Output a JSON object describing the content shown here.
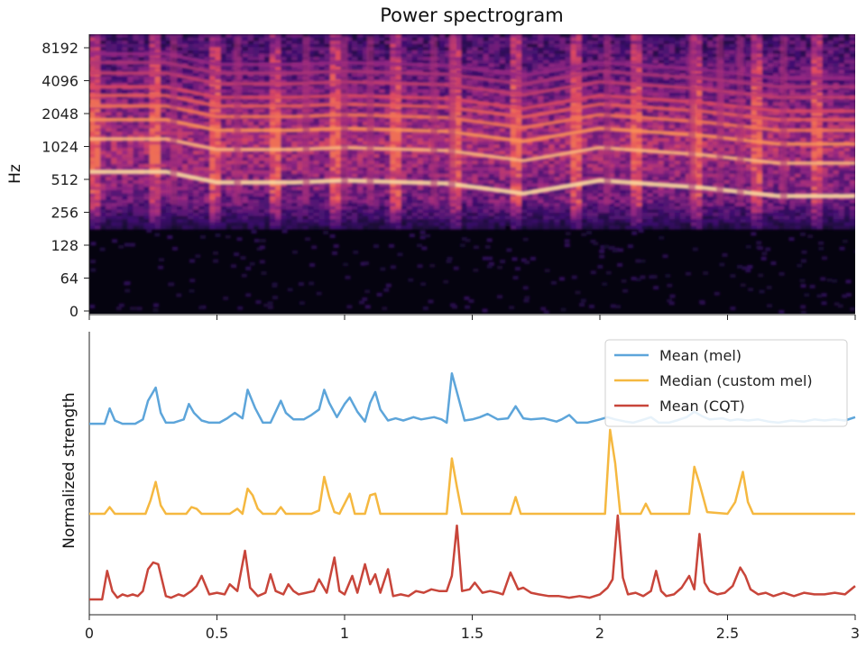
{
  "chart_data": [
    {
      "type": "heatmap",
      "title": "Power spectrogram",
      "xlabel": "",
      "ylabel": "Hz",
      "y_scale": "log2",
      "y_ticks": [
        "0",
        "64",
        "128",
        "256",
        "512",
        "1024",
        "2048",
        "4096",
        "8192"
      ],
      "xlim": [
        0,
        3
      ],
      "colormap": "magma",
      "prominent_bands_hz": [
        {
          "t": [
            0.0,
            0.3,
            0.5,
            0.8,
            1.0,
            1.4,
            1.7,
            2.0,
            2.4,
            2.7,
            3.0
          ],
          "f": [
            600,
            600,
            480,
            480,
            500,
            470,
            380,
            500,
            430,
            360,
            360
          ]
        }
      ]
    },
    {
      "type": "line",
      "title": "",
      "xlabel": "",
      "ylabel": "Normalized strength",
      "xlim": [
        0,
        3
      ],
      "x_ticks": [
        "0",
        "0.5",
        "1",
        "1.5",
        "2",
        "2.5",
        "3"
      ],
      "legend": "top-right",
      "series": [
        {
          "name": "Mean (mel)",
          "color": "#5da5da",
          "offset": 2,
          "points": [
            [
              0,
              0.08
            ],
            [
              0.06,
              0.08
            ],
            [
              0.08,
              0.36
            ],
            [
              0.1,
              0.14
            ],
            [
              0.13,
              0.08
            ],
            [
              0.18,
              0.08
            ],
            [
              0.21,
              0.16
            ],
            [
              0.23,
              0.5
            ],
            [
              0.26,
              0.74
            ],
            [
              0.28,
              0.28
            ],
            [
              0.3,
              0.1
            ],
            [
              0.33,
              0.1
            ],
            [
              0.37,
              0.16
            ],
            [
              0.39,
              0.44
            ],
            [
              0.41,
              0.28
            ],
            [
              0.44,
              0.14
            ],
            [
              0.47,
              0.1
            ],
            [
              0.51,
              0.1
            ],
            [
              0.54,
              0.18
            ],
            [
              0.57,
              0.28
            ],
            [
              0.6,
              0.18
            ],
            [
              0.62,
              0.7
            ],
            [
              0.65,
              0.36
            ],
            [
              0.68,
              0.1
            ],
            [
              0.71,
              0.1
            ],
            [
              0.73,
              0.3
            ],
            [
              0.75,
              0.5
            ],
            [
              0.77,
              0.28
            ],
            [
              0.8,
              0.16
            ],
            [
              0.84,
              0.16
            ],
            [
              0.87,
              0.24
            ],
            [
              0.9,
              0.34
            ],
            [
              0.92,
              0.7
            ],
            [
              0.94,
              0.46
            ],
            [
              0.97,
              0.2
            ],
            [
              1.0,
              0.44
            ],
            [
              1.02,
              0.56
            ],
            [
              1.05,
              0.3
            ],
            [
              1.08,
              0.12
            ],
            [
              1.1,
              0.46
            ],
            [
              1.12,
              0.66
            ],
            [
              1.14,
              0.34
            ],
            [
              1.17,
              0.14
            ],
            [
              1.2,
              0.18
            ],
            [
              1.23,
              0.14
            ],
            [
              1.27,
              0.2
            ],
            [
              1.3,
              0.16
            ],
            [
              1.35,
              0.2
            ],
            [
              1.38,
              0.16
            ],
            [
              1.4,
              0.1
            ],
            [
              1.42,
              1.0
            ],
            [
              1.45,
              0.48
            ],
            [
              1.47,
              0.14
            ],
            [
              1.5,
              0.16
            ],
            [
              1.53,
              0.2
            ],
            [
              1.56,
              0.26
            ],
            [
              1.6,
              0.16
            ],
            [
              1.64,
              0.18
            ],
            [
              1.67,
              0.4
            ],
            [
              1.7,
              0.18
            ],
            [
              1.73,
              0.16
            ],
            [
              1.78,
              0.18
            ],
            [
              1.83,
              0.12
            ],
            [
              1.85,
              0.16
            ],
            [
              1.88,
              0.24
            ],
            [
              1.91,
              0.1
            ],
            [
              1.95,
              0.1
            ],
            [
              2.0,
              0.16
            ],
            [
              2.03,
              0.2
            ],
            [
              2.06,
              0.16
            ],
            [
              2.1,
              0.12
            ],
            [
              2.13,
              0.1
            ],
            [
              2.16,
              0.14
            ],
            [
              2.2,
              0.2
            ],
            [
              2.23,
              0.1
            ],
            [
              2.27,
              0.1
            ],
            [
              2.3,
              0.14
            ],
            [
              2.34,
              0.2
            ],
            [
              2.37,
              0.3
            ],
            [
              2.4,
              0.22
            ],
            [
              2.43,
              0.16
            ],
            [
              2.48,
              0.18
            ],
            [
              2.51,
              0.14
            ],
            [
              2.54,
              0.16
            ],
            [
              2.58,
              0.14
            ],
            [
              2.62,
              0.16
            ],
            [
              2.66,
              0.12
            ],
            [
              2.7,
              0.1
            ],
            [
              2.75,
              0.14
            ],
            [
              2.8,
              0.12
            ],
            [
              2.84,
              0.16
            ],
            [
              2.88,
              0.14
            ],
            [
              2.92,
              0.16
            ],
            [
              2.96,
              0.14
            ],
            [
              3.0,
              0.2
            ]
          ]
        },
        {
          "name": "Median (custom mel)",
          "color": "#f5b840",
          "offset": 1,
          "points": [
            [
              0,
              0.0
            ],
            [
              0.06,
              0.0
            ],
            [
              0.08,
              0.08
            ],
            [
              0.1,
              0.0
            ],
            [
              0.22,
              0.0
            ],
            [
              0.24,
              0.16
            ],
            [
              0.26,
              0.38
            ],
            [
              0.28,
              0.1
            ],
            [
              0.3,
              0.0
            ],
            [
              0.38,
              0.0
            ],
            [
              0.4,
              0.08
            ],
            [
              0.42,
              0.06
            ],
            [
              0.44,
              0.0
            ],
            [
              0.55,
              0.0
            ],
            [
              0.58,
              0.06
            ],
            [
              0.6,
              0.0
            ],
            [
              0.62,
              0.3
            ],
            [
              0.64,
              0.22
            ],
            [
              0.66,
              0.06
            ],
            [
              0.68,
              0.0
            ],
            [
              0.73,
              0.0
            ],
            [
              0.75,
              0.08
            ],
            [
              0.77,
              0.0
            ],
            [
              0.87,
              0.0
            ],
            [
              0.9,
              0.04
            ],
            [
              0.92,
              0.44
            ],
            [
              0.94,
              0.2
            ],
            [
              0.96,
              0.02
            ],
            [
              0.98,
              0.0
            ],
            [
              1.0,
              0.12
            ],
            [
              1.02,
              0.24
            ],
            [
              1.04,
              0.0
            ],
            [
              1.08,
              0.0
            ],
            [
              1.1,
              0.22
            ],
            [
              1.12,
              0.24
            ],
            [
              1.14,
              0.0
            ],
            [
              1.4,
              0.0
            ],
            [
              1.42,
              0.66
            ],
            [
              1.44,
              0.32
            ],
            [
              1.46,
              0.0
            ],
            [
              1.65,
              0.0
            ],
            [
              1.67,
              0.2
            ],
            [
              1.69,
              0.0
            ],
            [
              2.02,
              0.0
            ],
            [
              2.04,
              1.0
            ],
            [
              2.06,
              0.6
            ],
            [
              2.08,
              0.0
            ],
            [
              2.16,
              0.0
            ],
            [
              2.18,
              0.12
            ],
            [
              2.2,
              0.0
            ],
            [
              2.35,
              0.0
            ],
            [
              2.37,
              0.56
            ],
            [
              2.39,
              0.36
            ],
            [
              2.42,
              0.02
            ],
            [
              2.5,
              0.0
            ],
            [
              2.53,
              0.14
            ],
            [
              2.56,
              0.5
            ],
            [
              2.58,
              0.14
            ],
            [
              2.6,
              0.0
            ],
            [
              3.0,
              0.0
            ]
          ]
        },
        {
          "name": "Mean (CQT)",
          "color": "#c8453a",
          "offset": 0,
          "points": [
            [
              0,
              0.0
            ],
            [
              0.05,
              0.0
            ],
            [
              0.07,
              0.34
            ],
            [
              0.09,
              0.1
            ],
            [
              0.11,
              0.02
            ],
            [
              0.13,
              0.06
            ],
            [
              0.15,
              0.04
            ],
            [
              0.17,
              0.06
            ],
            [
              0.19,
              0.04
            ],
            [
              0.21,
              0.1
            ],
            [
              0.23,
              0.36
            ],
            [
              0.25,
              0.44
            ],
            [
              0.27,
              0.42
            ],
            [
              0.3,
              0.04
            ],
            [
              0.32,
              0.02
            ],
            [
              0.35,
              0.06
            ],
            [
              0.37,
              0.04
            ],
            [
              0.4,
              0.1
            ],
            [
              0.42,
              0.16
            ],
            [
              0.44,
              0.28
            ],
            [
              0.47,
              0.06
            ],
            [
              0.5,
              0.08
            ],
            [
              0.53,
              0.06
            ],
            [
              0.55,
              0.18
            ],
            [
              0.58,
              0.1
            ],
            [
              0.61,
              0.58
            ],
            [
              0.63,
              0.14
            ],
            [
              0.66,
              0.04
            ],
            [
              0.69,
              0.08
            ],
            [
              0.71,
              0.3
            ],
            [
              0.73,
              0.1
            ],
            [
              0.76,
              0.06
            ],
            [
              0.78,
              0.18
            ],
            [
              0.8,
              0.1
            ],
            [
              0.82,
              0.06
            ],
            [
              0.85,
              0.08
            ],
            [
              0.88,
              0.1
            ],
            [
              0.9,
              0.24
            ],
            [
              0.93,
              0.08
            ],
            [
              0.96,
              0.5
            ],
            [
              0.98,
              0.1
            ],
            [
              1.0,
              0.06
            ],
            [
              1.03,
              0.28
            ],
            [
              1.05,
              0.08
            ],
            [
              1.08,
              0.42
            ],
            [
              1.1,
              0.18
            ],
            [
              1.12,
              0.3
            ],
            [
              1.14,
              0.08
            ],
            [
              1.17,
              0.36
            ],
            [
              1.19,
              0.04
            ],
            [
              1.22,
              0.06
            ],
            [
              1.25,
              0.04
            ],
            [
              1.28,
              0.1
            ],
            [
              1.31,
              0.08
            ],
            [
              1.34,
              0.12
            ],
            [
              1.37,
              0.1
            ],
            [
              1.4,
              0.1
            ],
            [
              1.42,
              0.28
            ],
            [
              1.44,
              0.88
            ],
            [
              1.46,
              0.1
            ],
            [
              1.49,
              0.12
            ],
            [
              1.51,
              0.2
            ],
            [
              1.54,
              0.08
            ],
            [
              1.57,
              0.1
            ],
            [
              1.6,
              0.08
            ],
            [
              1.62,
              0.06
            ],
            [
              1.65,
              0.32
            ],
            [
              1.68,
              0.12
            ],
            [
              1.7,
              0.14
            ],
            [
              1.73,
              0.08
            ],
            [
              1.76,
              0.06
            ],
            [
              1.8,
              0.04
            ],
            [
              1.84,
              0.04
            ],
            [
              1.88,
              0.02
            ],
            [
              1.92,
              0.04
            ],
            [
              1.96,
              0.02
            ],
            [
              2.0,
              0.06
            ],
            [
              2.03,
              0.14
            ],
            [
              2.05,
              0.24
            ],
            [
              2.07,
              1.0
            ],
            [
              2.09,
              0.26
            ],
            [
              2.11,
              0.06
            ],
            [
              2.14,
              0.08
            ],
            [
              2.17,
              0.04
            ],
            [
              2.2,
              0.1
            ],
            [
              2.22,
              0.34
            ],
            [
              2.24,
              0.1
            ],
            [
              2.26,
              0.04
            ],
            [
              2.29,
              0.06
            ],
            [
              2.32,
              0.14
            ],
            [
              2.35,
              0.28
            ],
            [
              2.37,
              0.12
            ],
            [
              2.39,
              0.78
            ],
            [
              2.41,
              0.2
            ],
            [
              2.43,
              0.1
            ],
            [
              2.46,
              0.06
            ],
            [
              2.49,
              0.08
            ],
            [
              2.52,
              0.16
            ],
            [
              2.55,
              0.38
            ],
            [
              2.57,
              0.28
            ],
            [
              2.59,
              0.12
            ],
            [
              2.62,
              0.06
            ],
            [
              2.65,
              0.08
            ],
            [
              2.68,
              0.04
            ],
            [
              2.72,
              0.08
            ],
            [
              2.76,
              0.04
            ],
            [
              2.8,
              0.08
            ],
            [
              2.84,
              0.06
            ],
            [
              2.88,
              0.06
            ],
            [
              2.92,
              0.08
            ],
            [
              2.96,
              0.06
            ],
            [
              3.0,
              0.16
            ]
          ]
        }
      ]
    }
  ]
}
